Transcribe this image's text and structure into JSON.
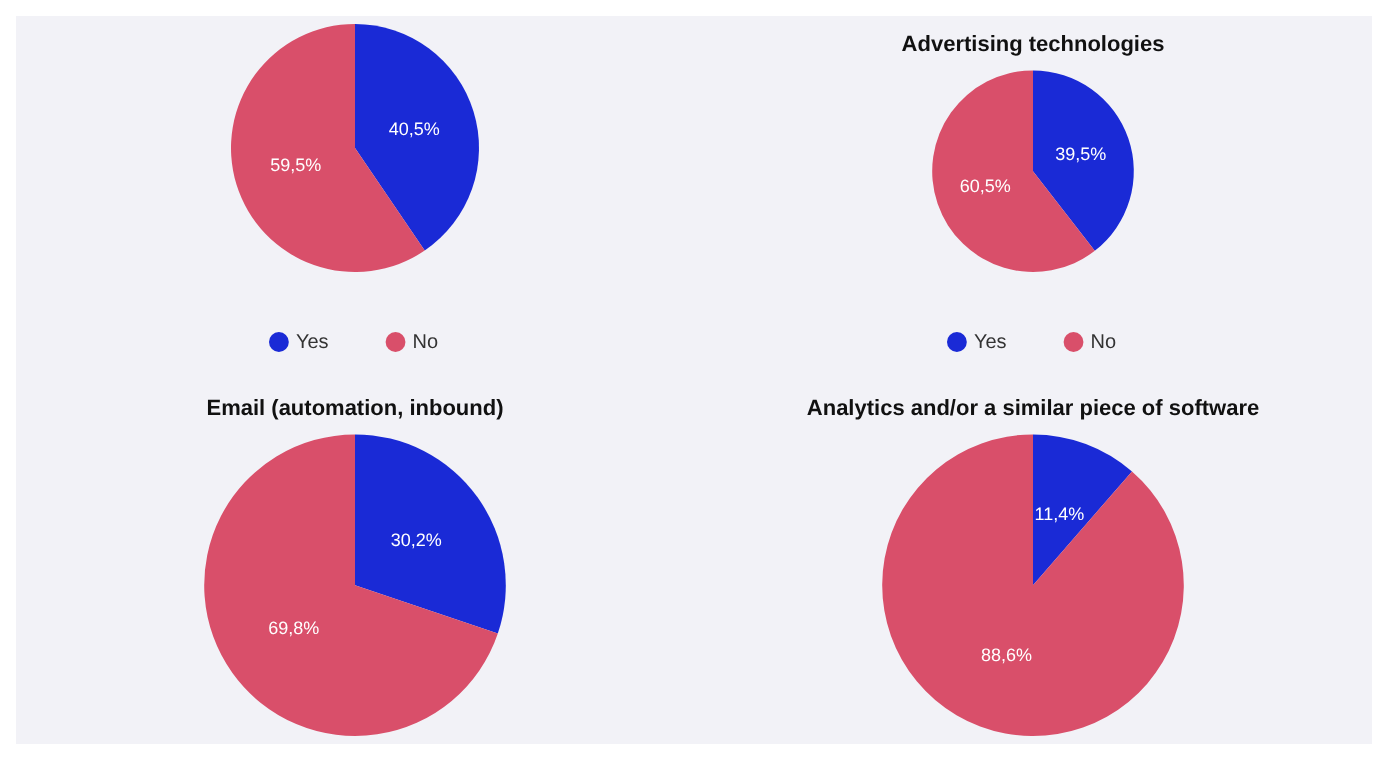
{
  "chart_data": [
    {
      "type": "pie",
      "categories": [
        "Yes",
        "No"
      ],
      "values": [
        40.5,
        59.5
      ],
      "colors": [
        "#1a2ad6",
        "#d94f6a"
      ],
      "value_labels": [
        "40,5%",
        "59,5%"
      ],
      "legend": "bottom"
    },
    {
      "type": "pie",
      "title": "Advertising technologies",
      "categories": [
        "Yes",
        "No"
      ],
      "values": [
        39.5,
        60.5
      ],
      "colors": [
        "#1a2ad6",
        "#d94f6a"
      ],
      "value_labels": [
        "39,5%",
        "60,5%"
      ],
      "legend": "bottom"
    },
    {
      "type": "pie",
      "title": "Email (automation, inbound)",
      "categories": [
        null,
        null
      ],
      "values": [
        30.2,
        69.8
      ],
      "colors": [
        "#1a2ad6",
        "#d94f6a"
      ],
      "value_labels": [
        "30,2%",
        "69,8%"
      ]
    },
    {
      "type": "pie",
      "title": "Analytics and/or a similar piece of software",
      "categories": [
        null,
        null
      ],
      "values": [
        11.4,
        88.6
      ],
      "colors": [
        "#1a2ad6",
        "#d94f6a"
      ],
      "value_labels": [
        "11,4%",
        "88,6%"
      ]
    }
  ]
}
